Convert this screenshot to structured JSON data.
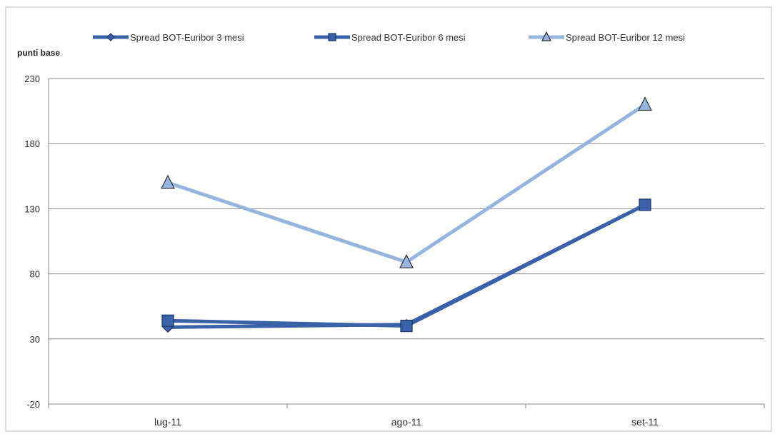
{
  "chart_data": {
    "type": "line",
    "ylabel": "punti base",
    "categories": [
      "lug-11",
      "ago-11",
      "set-11"
    ],
    "ylim": [
      -20,
      230
    ],
    "yticks": [
      230,
      180,
      130,
      80,
      30,
      -20
    ],
    "grid": true,
    "legend_position": "top",
    "series": [
      {
        "name": "Spread BOT-Euribor 3 mesi",
        "values": [
          39,
          41,
          133
        ],
        "color": "#3a62a8",
        "marker": "diamond"
      },
      {
        "name": "Spread BOT-Euribor 6 mesi",
        "values": [
          44,
          40,
          133
        ],
        "color": "#3a62a8",
        "marker": "square"
      },
      {
        "name": "Spread BOT-Euribor 12 mesi",
        "values": [
          150,
          89,
          210
        ],
        "color": "#95b4df",
        "marker": "triangle"
      }
    ]
  }
}
